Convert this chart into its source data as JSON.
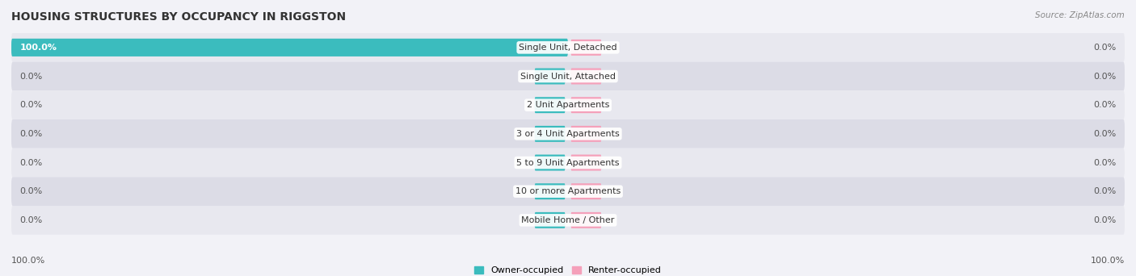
{
  "title": "HOUSING STRUCTURES BY OCCUPANCY IN RIGGSTON",
  "source": "Source: ZipAtlas.com",
  "categories": [
    "Single Unit, Detached",
    "Single Unit, Attached",
    "2 Unit Apartments",
    "3 or 4 Unit Apartments",
    "5 to 9 Unit Apartments",
    "10 or more Apartments",
    "Mobile Home / Other"
  ],
  "owner_values": [
    100.0,
    0.0,
    0.0,
    0.0,
    0.0,
    0.0,
    0.0
  ],
  "renter_values": [
    0.0,
    0.0,
    0.0,
    0.0,
    0.0,
    0.0,
    0.0
  ],
  "owner_color": "#3BBCBE",
  "renter_color": "#F5A0BA",
  "background_color": "#f2f2f7",
  "row_color_even": "#e8e8ef",
  "row_color_odd": "#dcdce6",
  "title_fontsize": 10,
  "label_fontsize": 8,
  "value_fontsize": 8,
  "legend_fontsize": 8,
  "source_fontsize": 7.5,
  "xlim_owner": 100,
  "xlim_renter": 100,
  "owner_label": "Owner-occupied",
  "renter_label": "Renter-occupied",
  "center_label_bg": "#ffffff",
  "bottom_tick_left": "100.0%",
  "bottom_tick_right": "100.0%"
}
